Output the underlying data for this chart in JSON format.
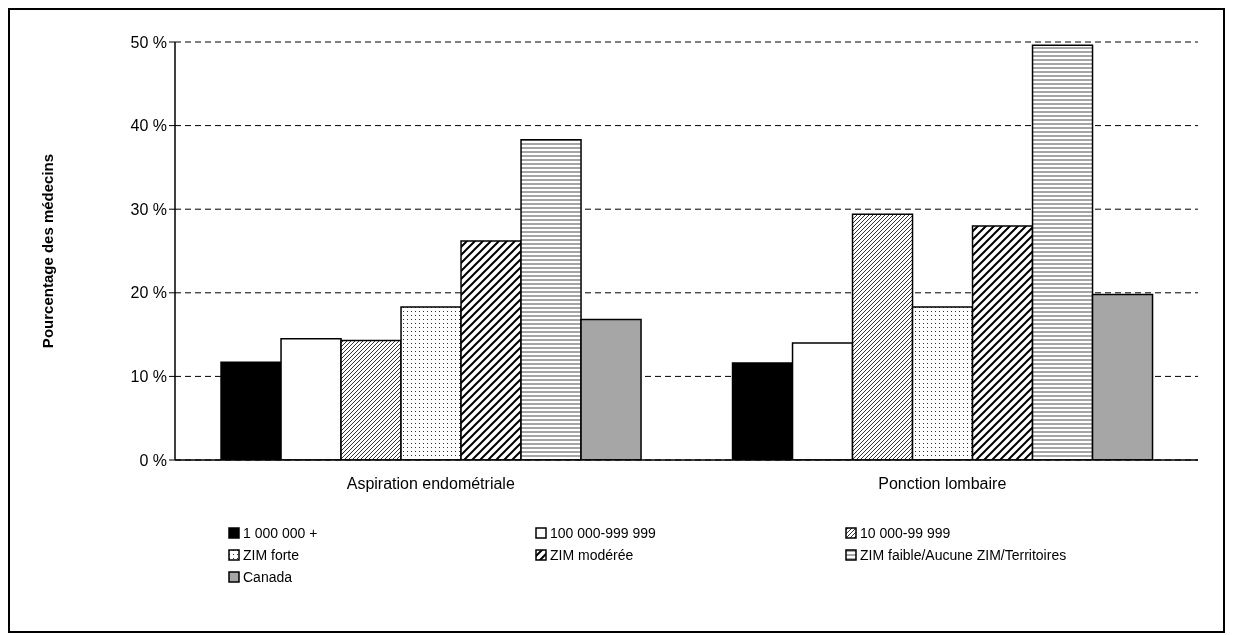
{
  "chart_data": {
    "type": "bar",
    "ylabel": "Pourcentage des médecins",
    "categories": [
      "Aspiration endométriale",
      "Ponction lombaire"
    ],
    "series": [
      {
        "name": "1 000 000 +",
        "color": "#000000",
        "values": [
          11.7,
          11.6
        ]
      },
      {
        "name": "100 000-999 999",
        "color": "#ffffff",
        "values": [
          14.5,
          14.0
        ]
      },
      {
        "name": "10 000-99 999",
        "color": "#000000",
        "values": [
          14.3,
          29.4
        ]
      },
      {
        "name": "ZIM forte",
        "color": "#000000",
        "values": [
          18.3,
          18.3
        ]
      },
      {
        "name": "ZIM modérée",
        "color": "#000000",
        "values": [
          26.2,
          28.0
        ]
      },
      {
        "name": "ZIM faible/Aucune ZIM/Territoires",
        "color": "#000000",
        "values": [
          38.3,
          49.6
        ]
      },
      {
        "name": "Canada",
        "color": "#000000",
        "values": [
          16.8,
          19.8
        ]
      }
    ],
    "ylim": [
      0,
      50
    ],
    "yticks": [
      {
        "value": 0,
        "label": "0 %"
      },
      {
        "value": 10,
        "label": "10 %"
      },
      {
        "value": 20,
        "label": "20 %"
      },
      {
        "value": 30,
        "label": "30 %"
      },
      {
        "value": 40,
        "label": "40 %"
      },
      {
        "value": 50,
        "label": "50 %"
      }
    ],
    "grid": "y",
    "legend": "bottom"
  }
}
